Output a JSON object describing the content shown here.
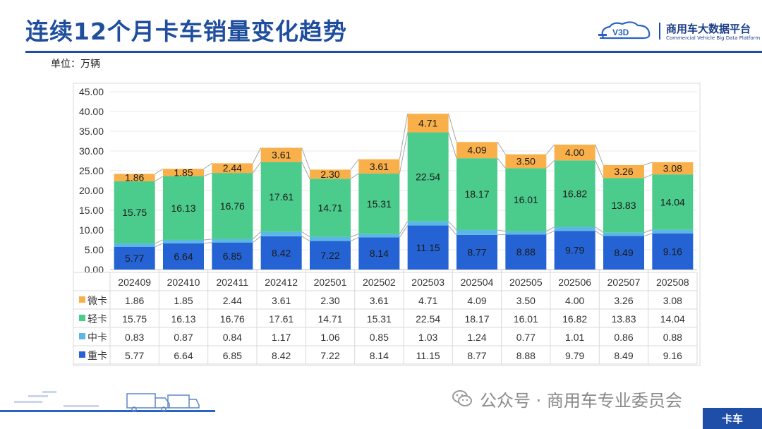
{
  "header": {
    "title": "连续12个月卡车销量变化趋势",
    "logo_name": "商用车大数据平台",
    "logo_en": "Commercial Vehicle Big Data Platform",
    "logo_mark": "V3D"
  },
  "unit_label": "单位：万辆",
  "footer": {
    "wechat_text": "公众号 · 商用车专业委员会",
    "tag": "卡车"
  },
  "colors": {
    "heavy": "#2563d4",
    "medium": "#5bb8e6",
    "light": "#4ccc8c",
    "micro": "#f9b04a",
    "accent": "#1f4ea8"
  },
  "chart_data": {
    "type": "bar",
    "stacked": true,
    "categories": [
      "202409",
      "202410",
      "202411",
      "202412",
      "202501",
      "202502",
      "202503",
      "202504",
      "202505",
      "202506",
      "202507",
      "202508"
    ],
    "series": [
      {
        "name": "重卡",
        "key": "heavy",
        "values": [
          "5.77",
          "6.64",
          "6.85",
          "8.42",
          "7.22",
          "8.14",
          "11.15",
          "8.77",
          "8.88",
          "9.79",
          "8.49",
          "9.16"
        ]
      },
      {
        "name": "中卡",
        "key": "medium",
        "values": [
          "0.83",
          "0.87",
          "0.84",
          "1.17",
          "1.06",
          "0.85",
          "1.03",
          "1.24",
          "0.77",
          "1.01",
          "0.86",
          "0.88"
        ]
      },
      {
        "name": "轻卡",
        "key": "light",
        "values": [
          "15.75",
          "16.13",
          "16.76",
          "17.61",
          "14.71",
          "15.31",
          "22.54",
          "18.17",
          "16.01",
          "16.82",
          "13.83",
          "14.04"
        ]
      },
      {
        "name": "微卡",
        "key": "micro",
        "values": [
          "1.86",
          "1.85",
          "2.44",
          "3.61",
          "2.30",
          "3.61",
          "4.71",
          "4.09",
          "3.50",
          "4.00",
          "3.26",
          "3.08"
        ]
      }
    ],
    "table_order": [
      "微卡",
      "轻卡",
      "中卡",
      "重卡"
    ],
    "y_ticks": [
      "0.00",
      "5.00",
      "10.00",
      "15.00",
      "20.00",
      "25.00",
      "30.00",
      "35.00",
      "40.00",
      "45.00"
    ],
    "ylim": [
      0,
      45
    ],
    "labeled_series": [
      "重卡",
      "轻卡",
      "微卡"
    ],
    "series_lines": true,
    "data_table": true
  }
}
